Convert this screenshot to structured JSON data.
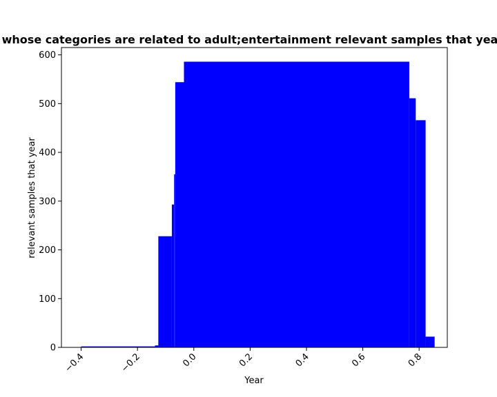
{
  "chart_data": {
    "type": "bar",
    "title": "Number of apks whose categories are related to adult;entertainment relevant samples that year in privacy policy",
    "xlabel": "Year",
    "ylabel": "relevant samples that year",
    "xlim": [
      -0.47,
      0.9
    ],
    "ylim": [
      0,
      615
    ],
    "xticks": [
      -0.4,
      -0.2,
      0.0,
      0.2,
      0.4,
      0.6,
      0.8
    ],
    "xtick_labels": [
      "−0.4",
      "−0.2",
      "0.0",
      "0.2",
      "0.4",
      "0.6",
      "0.8"
    ],
    "yticks": [
      0,
      100,
      200,
      300,
      400,
      500,
      600
    ],
    "ytick_labels": [
      "0",
      "100",
      "200",
      "300",
      "400",
      "500",
      "600"
    ],
    "bar_color": "#0000ff",
    "bars": [
      {
        "x0": -0.4,
        "x1": -0.138,
        "value": 2
      },
      {
        "x0": -0.138,
        "x1": -0.126,
        "value": 4
      },
      {
        "x0": -0.126,
        "x1": -0.078,
        "value": 228
      },
      {
        "x0": -0.078,
        "x1": -0.07,
        "value": 293
      },
      {
        "x0": -0.07,
        "x1": -0.066,
        "value": 355
      },
      {
        "x0": -0.066,
        "x1": -0.035,
        "value": 544
      },
      {
        "x0": -0.035,
        "x1": 0.765,
        "value": 586
      },
      {
        "x0": 0.765,
        "x1": 0.788,
        "value": 511
      },
      {
        "x0": 0.788,
        "x1": 0.823,
        "value": 466
      },
      {
        "x0": 0.823,
        "x1": 0.855,
        "value": 22
      }
    ],
    "grid": false,
    "legend": "none"
  }
}
